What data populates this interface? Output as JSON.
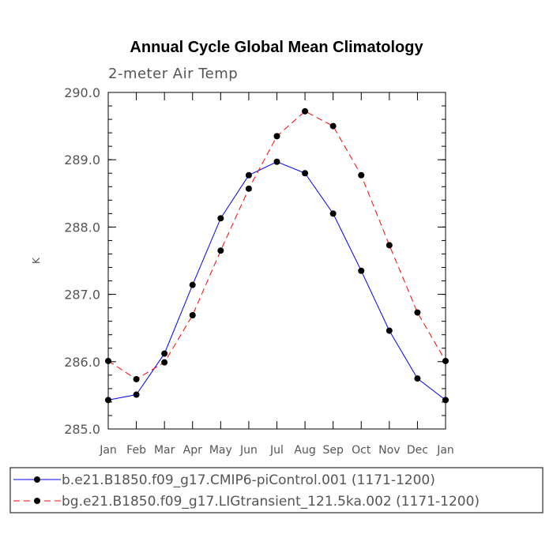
{
  "chart_data": {
    "type": "line",
    "title": "Annual Cycle Global Mean Climatology",
    "subtitle": "2-meter Air Temp",
    "ylabel": "K",
    "xlabel": "",
    "ylim": [
      285.0,
      290.0
    ],
    "yticks": [
      "285.0",
      "286.0",
      "287.0",
      "288.0",
      "289.0",
      "290.0"
    ],
    "categories": [
      "Jan",
      "Feb",
      "Mar",
      "Apr",
      "May",
      "Jun",
      "Jul",
      "Aug",
      "Sep",
      "Oct",
      "Nov",
      "Dec",
      "Jan"
    ],
    "series": [
      {
        "name": "b.e21.B1850.f09_g17.CMIP6-piControl.001 (1171-1200)",
        "color": "#0000ff",
        "dash": "solid",
        "values": [
          285.43,
          285.51,
          286.12,
          287.14,
          288.13,
          288.77,
          288.97,
          288.8,
          288.2,
          287.35,
          286.46,
          285.75,
          285.43
        ]
      },
      {
        "name": "bg.e21.B1850.f09_g17.LIGtransient_121.5ka.002 (1171-1200)",
        "color": "#ff0000",
        "dash": "dashed",
        "values": [
          286.01,
          285.74,
          285.99,
          286.69,
          287.65,
          288.57,
          289.35,
          289.72,
          289.5,
          288.77,
          287.73,
          286.73,
          286.01
        ]
      }
    ]
  }
}
